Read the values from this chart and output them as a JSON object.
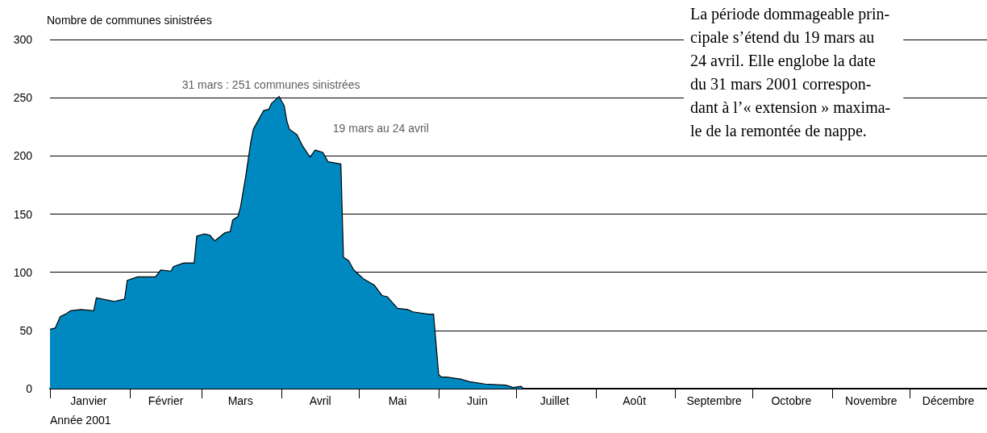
{
  "chart_data": {
    "type": "area",
    "ylabel": "Nombre de communes sinistrées",
    "xlabel": "Année 2001",
    "x": [
      "2001-01-01",
      "2001-01-03",
      "2001-01-05",
      "2001-01-07",
      "2001-01-09",
      "2001-01-13",
      "2001-01-18",
      "2001-01-19",
      "2001-01-26",
      "2001-01-30",
      "2001-01-31",
      "2001-02-04",
      "2001-02-11",
      "2001-02-13",
      "2001-02-17",
      "2001-02-18",
      "2001-02-22",
      "2001-02-26",
      "2001-02-27",
      "2001-03-02",
      "2001-03-04",
      "2001-03-06",
      "2001-03-10",
      "2001-03-12",
      "2001-03-13",
      "2001-03-15",
      "2001-03-16",
      "2001-03-18",
      "2001-03-20",
      "2001-03-21",
      "2001-03-23",
      "2001-03-25",
      "2001-03-27",
      "2001-03-28",
      "2001-03-30",
      "2001-03-31",
      "2001-04-02",
      "2001-04-03",
      "2001-04-04",
      "2001-04-07",
      "2001-04-09",
      "2001-04-12",
      "2001-04-14",
      "2001-04-17",
      "2001-04-19",
      "2001-04-24",
      "2001-04-25",
      "2001-04-27",
      "2001-04-29",
      "2001-05-03",
      "2001-05-07",
      "2001-05-10",
      "2001-05-12",
      "2001-05-16",
      "2001-05-20",
      "2001-05-22",
      "2001-05-28",
      "2001-05-30",
      "2001-06-01",
      "2001-06-02",
      "2001-06-04",
      "2001-06-10",
      "2001-06-13",
      "2001-06-19",
      "2001-06-27",
      "2001-06-30",
      "2001-07-03",
      "2001-07-04",
      "2001-12-31"
    ],
    "series": [
      {
        "color": "#0089c0",
        "values": [
          51,
          52,
          62,
          64,
          67,
          68,
          67,
          78,
          75,
          77,
          93,
          96,
          96,
          102,
          101,
          105,
          108,
          108,
          131,
          133,
          132,
          127,
          134,
          135,
          145,
          148,
          156,
          182,
          212,
          223,
          231,
          239,
          240,
          245,
          249,
          251,
          243,
          230,
          223,
          218,
          209,
          199,
          205,
          203,
          195,
          193,
          113,
          110,
          102,
          94,
          89,
          80,
          79,
          69,
          68,
          66,
          64,
          64,
          12,
          10,
          10,
          8,
          6,
          4,
          3,
          1,
          2,
          0,
          0
        ]
      }
    ],
    "xlim": [
      "2001-01-01",
      "2001-12-31"
    ],
    "xticks": [
      {
        "value": "2001-01-01",
        "label": null
      },
      {
        "value": "2001-01-16",
        "label": "Janvier"
      },
      {
        "value": "2001-02-01",
        "label": null
      },
      {
        "value": "2001-02-15",
        "label": "Février"
      },
      {
        "value": "2001-03-01",
        "label": null
      },
      {
        "value": "2001-03-16",
        "label": "Mars"
      },
      {
        "value": "2001-04-01",
        "label": null
      },
      {
        "value": "2001-04-16",
        "label": "Avril"
      },
      {
        "value": "2001-05-01",
        "label": null
      },
      {
        "value": "2001-05-16",
        "label": "Mai"
      },
      {
        "value": "2001-06-01",
        "label": null
      },
      {
        "value": "2001-06-16",
        "label": "Juin"
      },
      {
        "value": "2001-07-01",
        "label": null
      },
      {
        "value": "2001-07-16",
        "label": "Juillet"
      },
      {
        "value": "2001-08-01",
        "label": null
      },
      {
        "value": "2001-08-16",
        "label": "Août"
      },
      {
        "value": "2001-09-01",
        "label": null
      },
      {
        "value": "2001-09-16",
        "label": "Septembre"
      },
      {
        "value": "2001-10-01",
        "label": null
      },
      {
        "value": "2001-10-16",
        "label": "Octobre"
      },
      {
        "value": "2001-11-01",
        "label": null
      },
      {
        "value": "2001-11-16",
        "label": "Novembre"
      },
      {
        "value": "2001-12-01",
        "label": null
      },
      {
        "value": "2001-12-16",
        "label": "Décembre"
      }
    ],
    "ylim": [
      0,
      300
    ],
    "yticks": [
      0,
      50,
      100,
      150,
      200,
      250,
      300
    ],
    "grid": "y",
    "annotations": [
      {
        "text": "31 mars : 251 communes sinistrées",
        "x": "2001-03-31",
        "y": 251
      },
      {
        "text": "19 mars au 24 avril",
        "x": "2001-04-19",
        "y": 203
      },
      "La période dommageable prin-\ncipale s’étend du 19 mars au\n24 avril. Elle englobe la date\ndu 31 mars 2001 correspon-\ndant à l’« extension » maxima-\nle de la remontée de nappe."
    ]
  }
}
